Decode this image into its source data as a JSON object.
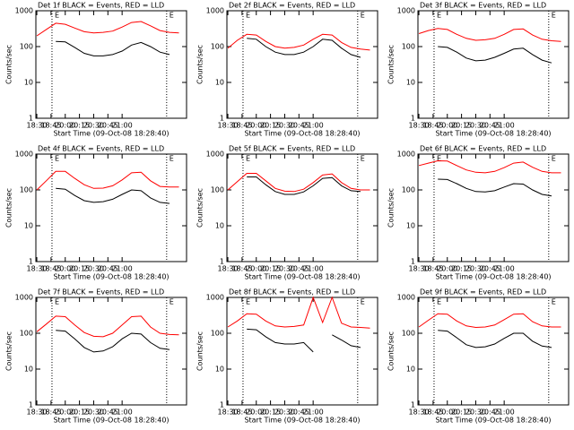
{
  "chart_data": [
    {
      "type": "line",
      "title": "Det 1f BLACK = Events, RED = LLD",
      "xlabel": "Start Time (09-Oct-08 18:28:40)",
      "ylabel": "Counts/sec",
      "ylog": true,
      "xlim": [
        1109,
        1268
      ],
      "ylim": [
        1,
        1000
      ],
      "yticks": [
        1,
        10,
        100,
        1000
      ],
      "xticks": [
        {
          "value": 1110,
          "label": "18:30"
        },
        {
          "value": 1125,
          "label": "18:45"
        },
        {
          "value": 1140,
          "label": "20:00"
        },
        {
          "value": 1155,
          "label": "20:15"
        },
        {
          "value": 1170,
          "label": "20:30"
        },
        {
          "value": 1185,
          "label": "20:45"
        },
        {
          "value": 1200,
          "label": "21:00"
        }
      ],
      "x": [
        1110,
        1120,
        1130,
        1140,
        1150,
        1160,
        1170,
        1180,
        1190,
        1200,
        1210,
        1220,
        1230,
        1240,
        1250,
        1260
      ],
      "markers": [
        {
          "x": 1126,
          "label": "E"
        },
        {
          "x": 1247,
          "label": "E"
        }
      ],
      "series": [
        {
          "name": "LLD",
          "color": "#ff0000",
          "values": [
            200,
            300,
            450,
            420,
            330,
            260,
            240,
            250,
            270,
            350,
            470,
            500,
            380,
            280,
            250,
            240
          ]
        },
        {
          "name": "Events",
          "color": "#000000",
          "values": [
            null,
            null,
            140,
            135,
            95,
            65,
            55,
            55,
            60,
            75,
            110,
            130,
            100,
            70,
            60,
            null
          ]
        }
      ]
    },
    {
      "type": "line",
      "title": "Det 2f BLACK = Events, RED = LLD",
      "xlabel": "Start Time (09-Oct-08 18:28:40)",
      "ylabel": "Counts/sec",
      "ylog": true,
      "xlim": [
        1109,
        1268
      ],
      "ylim": [
        1,
        1000
      ],
      "yticks": [
        1,
        10,
        100,
        1000
      ],
      "xticks": [
        {
          "value": 1110,
          "label": "18:30"
        },
        {
          "value": 1125,
          "label": "18:45"
        },
        {
          "value": 1140,
          "label": "20:00"
        },
        {
          "value": 1155,
          "label": "20:15"
        },
        {
          "value": 1170,
          "label": "20:30"
        },
        {
          "value": 1185,
          "label": "20:45"
        },
        {
          "value": 1200,
          "label": "21:00"
        }
      ],
      "x": [
        1110,
        1120,
        1130,
        1140,
        1150,
        1160,
        1170,
        1180,
        1190,
        1200,
        1210,
        1220,
        1230,
        1240,
        1250,
        1260
      ],
      "markers": [
        {
          "x": 1126,
          "label": "E"
        },
        {
          "x": 1247,
          "label": "E"
        }
      ],
      "series": [
        {
          "name": "LLD",
          "color": "#ff0000",
          "values": [
            90,
            150,
            220,
            210,
            140,
            100,
            90,
            95,
            110,
            160,
            220,
            210,
            130,
            95,
            85,
            80
          ]
        },
        {
          "name": "Events",
          "color": "#000000",
          "values": [
            null,
            null,
            170,
            160,
            100,
            70,
            60,
            60,
            70,
            100,
            160,
            150,
            90,
            60,
            50,
            null
          ]
        }
      ]
    },
    {
      "type": "line",
      "title": "Det 3f BLACK = Events, RED = LLD",
      "xlabel": "Start Time (09-Oct-08 18:28:40)",
      "ylabel": "Counts/sec",
      "ylog": true,
      "xlim": [
        1109,
        1268
      ],
      "ylim": [
        1,
        1000
      ],
      "yticks": [
        1,
        10,
        100,
        1000
      ],
      "xticks": [
        {
          "value": 1110,
          "label": "18:30"
        },
        {
          "value": 1125,
          "label": "18:45"
        },
        {
          "value": 1140,
          "label": "20:00"
        },
        {
          "value": 1155,
          "label": "20:15"
        },
        {
          "value": 1170,
          "label": "20:30"
        },
        {
          "value": 1185,
          "label": "20:45"
        },
        {
          "value": 1200,
          "label": "21:00"
        }
      ],
      "x": [
        1110,
        1120,
        1130,
        1140,
        1150,
        1160,
        1170,
        1180,
        1190,
        1200,
        1210,
        1220,
        1230,
        1240,
        1250,
        1260
      ],
      "markers": [
        {
          "x": 1126,
          "label": "E"
        },
        {
          "x": 1247,
          "label": "E"
        }
      ],
      "series": [
        {
          "name": "LLD",
          "color": "#ff0000",
          "values": [
            230,
            280,
            320,
            300,
            220,
            170,
            150,
            155,
            170,
            220,
            300,
            310,
            210,
            160,
            145,
            140
          ]
        },
        {
          "name": "Events",
          "color": "#000000",
          "values": [
            null,
            null,
            100,
            95,
            70,
            48,
            40,
            42,
            50,
            65,
            85,
            90,
            60,
            42,
            35,
            null
          ]
        }
      ]
    },
    {
      "type": "line",
      "title": "Det 4f BLACK = Events, RED = LLD",
      "xlabel": "Start Time (09-Oct-08 18:28:40)",
      "ylabel": "Counts/sec",
      "ylog": true,
      "xlim": [
        1109,
        1268
      ],
      "ylim": [
        1,
        1000
      ],
      "yticks": [
        1,
        10,
        100,
        1000
      ],
      "xticks": [
        {
          "value": 1110,
          "label": "18:30"
        },
        {
          "value": 1125,
          "label": "18:45"
        },
        {
          "value": 1140,
          "label": "20:00"
        },
        {
          "value": 1155,
          "label": "20:15"
        },
        {
          "value": 1170,
          "label": "20:30"
        },
        {
          "value": 1185,
          "label": "20:45"
        },
        {
          "value": 1200,
          "label": "21:00"
        }
      ],
      "x": [
        1110,
        1120,
        1130,
        1140,
        1150,
        1160,
        1170,
        1180,
        1190,
        1200,
        1210,
        1220,
        1230,
        1240,
        1250,
        1260
      ],
      "markers": [
        {
          "x": 1126,
          "label": "E"
        },
        {
          "x": 1247,
          "label": "E"
        }
      ],
      "series": [
        {
          "name": "LLD",
          "color": "#ff0000",
          "values": [
            100,
            180,
            330,
            330,
            210,
            140,
            110,
            112,
            130,
            190,
            300,
            310,
            180,
            125,
            120,
            120
          ]
        },
        {
          "name": "Events",
          "color": "#000000",
          "values": [
            null,
            null,
            110,
            105,
            70,
            50,
            45,
            47,
            55,
            75,
            100,
            95,
            60,
            45,
            42,
            null
          ]
        }
      ]
    },
    {
      "type": "line",
      "title": "Det 5f BLACK = Events, RED = LLD",
      "xlabel": "Start Time (09-Oct-08 18:28:40)",
      "ylabel": "Counts/sec",
      "ylog": true,
      "xlim": [
        1109,
        1268
      ],
      "ylim": [
        1,
        1000
      ],
      "yticks": [
        1,
        10,
        100,
        1000
      ],
      "xticks": [
        {
          "value": 1110,
          "label": "18:30"
        },
        {
          "value": 1125,
          "label": "18:45"
        },
        {
          "value": 1140,
          "label": "20:00"
        },
        {
          "value": 1155,
          "label": "20:15"
        },
        {
          "value": 1170,
          "label": "20:30"
        },
        {
          "value": 1185,
          "label": "20:45"
        },
        {
          "value": 1200,
          "label": "21:00"
        }
      ],
      "x": [
        1110,
        1120,
        1130,
        1140,
        1150,
        1160,
        1170,
        1180,
        1190,
        1200,
        1210,
        1220,
        1230,
        1240,
        1250,
        1260
      ],
      "markers": [
        {
          "x": 1126,
          "label": "E"
        },
        {
          "x": 1247,
          "label": "E"
        }
      ],
      "series": [
        {
          "name": "LLD",
          "color": "#ff0000",
          "values": [
            100,
            170,
            290,
            290,
            180,
            110,
            92,
            90,
            105,
            160,
            260,
            280,
            160,
            110,
            100,
            100
          ]
        },
        {
          "name": "Events",
          "color": "#000000",
          "values": [
            null,
            null,
            230,
            230,
            140,
            90,
            75,
            75,
            88,
            130,
            210,
            220,
            130,
            95,
            90,
            null
          ]
        }
      ]
    },
    {
      "type": "line",
      "title": "Det 6f BLACK = Events, RED = LLD",
      "xlabel": "Start Time (09-Oct-08 18:28:40)",
      "ylabel": "Counts/sec",
      "ylog": true,
      "xlim": [
        1109,
        1268
      ],
      "ylim": [
        1,
        1000
      ],
      "yticks": [
        1,
        10,
        100,
        1000
      ],
      "xticks": [
        {
          "value": 1110,
          "label": "18:30"
        },
        {
          "value": 1125,
          "label": "18:45"
        },
        {
          "value": 1140,
          "label": "20:00"
        },
        {
          "value": 1155,
          "label": "20:15"
        },
        {
          "value": 1170,
          "label": "20:30"
        },
        {
          "value": 1185,
          "label": "20:45"
        },
        {
          "value": 1200,
          "label": "21:00"
        }
      ],
      "x": [
        1110,
        1120,
        1130,
        1140,
        1150,
        1160,
        1170,
        1180,
        1190,
        1200,
        1210,
        1220,
        1230,
        1240,
        1250,
        1260
      ],
      "markers": [
        {
          "x": 1126,
          "label": "E"
        },
        {
          "x": 1247,
          "label": "E"
        }
      ],
      "series": [
        {
          "name": "LLD",
          "color": "#ff0000",
          "values": [
            480,
            560,
            650,
            640,
            480,
            360,
            310,
            300,
            330,
            420,
            560,
            600,
            430,
            330,
            300,
            300
          ]
        },
        {
          "name": "Events",
          "color": "#000000",
          "values": [
            null,
            null,
            200,
            195,
            150,
            110,
            90,
            88,
            95,
            120,
            150,
            145,
            100,
            75,
            68,
            null
          ]
        }
      ]
    },
    {
      "type": "line",
      "title": "Det 7f BLACK = Events, RED = LLD",
      "xlabel": "Start Time (09-Oct-08 18:28:40)",
      "ylabel": "Counts/sec",
      "ylog": true,
      "xlim": [
        1109,
        1268
      ],
      "ylim": [
        1,
        1000
      ],
      "yticks": [
        1,
        10,
        100,
        1000
      ],
      "xticks": [
        {
          "value": 1110,
          "label": "18:30"
        },
        {
          "value": 1125,
          "label": "18:45"
        },
        {
          "value": 1140,
          "label": "20:00"
        },
        {
          "value": 1155,
          "label": "20:15"
        },
        {
          "value": 1170,
          "label": "20:30"
        },
        {
          "value": 1185,
          "label": "20:45"
        },
        {
          "value": 1200,
          "label": "21:00"
        }
      ],
      "x": [
        1110,
        1120,
        1130,
        1140,
        1150,
        1160,
        1170,
        1180,
        1190,
        1200,
        1210,
        1220,
        1230,
        1240,
        1250,
        1260
      ],
      "markers": [
        {
          "x": 1126,
          "label": "E"
        },
        {
          "x": 1247,
          "label": "E"
        }
      ],
      "series": [
        {
          "name": "LLD",
          "color": "#ff0000",
          "values": [
            110,
            180,
            300,
            290,
            170,
            105,
            82,
            80,
            100,
            170,
            290,
            300,
            150,
            100,
            92,
            90
          ]
        },
        {
          "name": "Events",
          "color": "#000000",
          "values": [
            null,
            null,
            120,
            115,
            70,
            40,
            30,
            32,
            42,
            70,
            100,
            95,
            55,
            38,
            35,
            null
          ]
        }
      ]
    },
    {
      "type": "line",
      "title": "Det 8f BLACK = Events, RED = LLD",
      "xlabel": "Start Time (09-Oct-08 18:28:40)",
      "ylabel": "Counts/sec",
      "ylog": true,
      "xlim": [
        1109,
        1268
      ],
      "ylim": [
        1,
        1000
      ],
      "yticks": [
        1,
        10,
        100,
        1000
      ],
      "xticks": [
        {
          "value": 1110,
          "label": "18:30"
        },
        {
          "value": 1125,
          "label": "18:45"
        },
        {
          "value": 1140,
          "label": "20:00"
        },
        {
          "value": 1155,
          "label": "20:15"
        },
        {
          "value": 1170,
          "label": "20:30"
        },
        {
          "value": 1185,
          "label": "20:45"
        },
        {
          "value": 1200,
          "label": "21:00"
        }
      ],
      "x": [
        1110,
        1120,
        1130,
        1140,
        1150,
        1160,
        1170,
        1180,
        1190,
        1200,
        1210,
        1220,
        1230,
        1240,
        1250,
        1260
      ],
      "markers": [
        {
          "x": 1126,
          "label": "E"
        },
        {
          "x": 1247,
          "label": "E"
        }
      ],
      "series": [
        {
          "name": "LLD",
          "color": "#ff0000",
          "values": [
            150,
            220,
            350,
            340,
            220,
            160,
            150,
            155,
            170,
            1000,
            200,
            1000,
            190,
            150,
            145,
            140
          ]
        },
        {
          "name": "Events",
          "color": "#000000",
          "values": [
            null,
            null,
            130,
            125,
            80,
            55,
            50,
            50,
            55,
            30,
            null,
            90,
            65,
            45,
            40,
            null
          ]
        }
      ]
    },
    {
      "type": "line",
      "title": "Det 9f BLACK = Events, RED = LLD",
      "xlabel": "Start Time (09-Oct-08 18:28:40)",
      "ylabel": "Counts/sec",
      "ylog": true,
      "xlim": [
        1109,
        1268
      ],
      "ylim": [
        1,
        1000
      ],
      "yticks": [
        1,
        10,
        100,
        1000
      ],
      "xticks": [
        {
          "value": 1110,
          "label": "18:30"
        },
        {
          "value": 1125,
          "label": "18:45"
        },
        {
          "value": 1140,
          "label": "20:00"
        },
        {
          "value": 1155,
          "label": "20:15"
        },
        {
          "value": 1170,
          "label": "20:30"
        },
        {
          "value": 1185,
          "label": "20:45"
        },
        {
          "value": 1200,
          "label": "21:00"
        }
      ],
      "x": [
        1110,
        1120,
        1130,
        1140,
        1150,
        1160,
        1170,
        1180,
        1190,
        1200,
        1210,
        1220,
        1230,
        1240,
        1250,
        1260
      ],
      "markers": [
        {
          "x": 1126,
          "label": "E"
        },
        {
          "x": 1247,
          "label": "E"
        }
      ],
      "series": [
        {
          "name": "LLD",
          "color": "#ff0000",
          "values": [
            150,
            230,
            350,
            340,
            220,
            160,
            145,
            150,
            170,
            240,
            340,
            350,
            210,
            160,
            150,
            150
          ]
        },
        {
          "name": "Events",
          "color": "#000000",
          "values": [
            null,
            null,
            120,
            115,
            75,
            48,
            40,
            42,
            50,
            72,
            100,
            100,
            60,
            44,
            40,
            null
          ]
        }
      ]
    }
  ]
}
